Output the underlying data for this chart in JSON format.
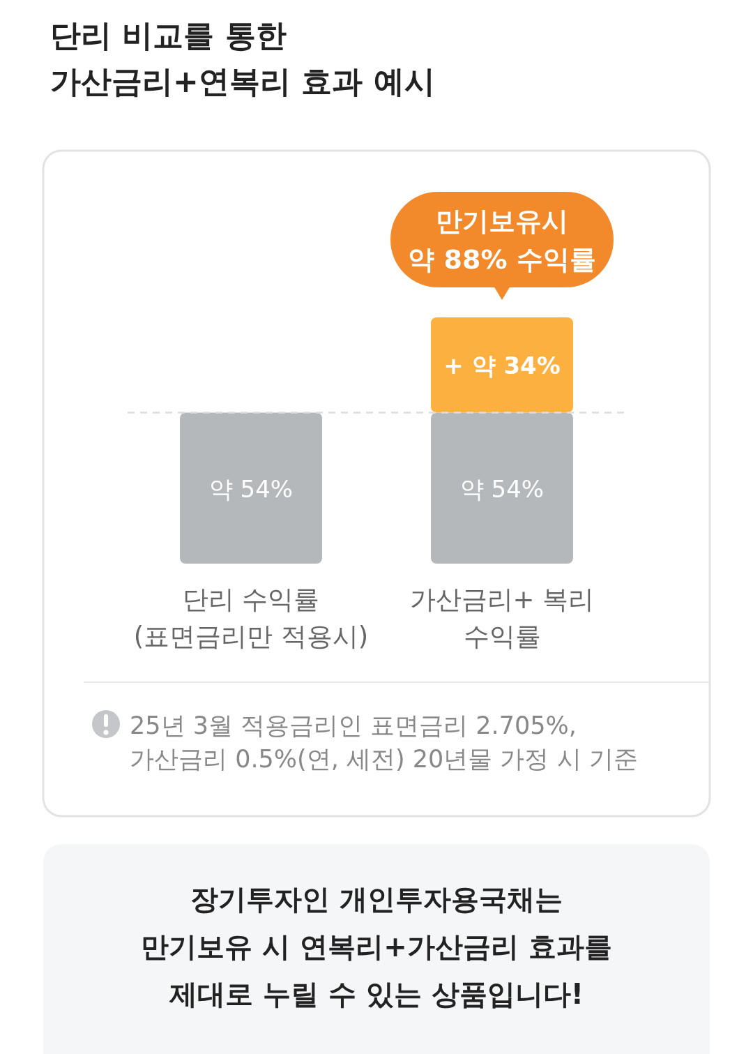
{
  "chart_data": {
    "type": "bar",
    "stacked": true,
    "title": "단리 비교를 통한\n가산금리+연복리 효과 예시",
    "categories": [
      "단리 수익률\n(표면금리만 적용시)",
      "가산금리+ 복리\n수익률"
    ],
    "series": [
      {
        "color": "#b5b8bb",
        "values": [
          54,
          54
        ],
        "value_labels": [
          "약 54%",
          "약 54%"
        ]
      },
      {
        "color": "#fbb040",
        "values": [
          null,
          34
        ],
        "value_labels": [
          null,
          "+ 약 34%"
        ]
      }
    ],
    "ref_lines": [
      {
        "axis": "y",
        "value": 54,
        "line_style": "dashed",
        "color": "#dddddd"
      }
    ],
    "annotations": [
      {
        "text": "만기보유시\n약 88% 수익률",
        "x": "가산금리+ 복리\n수익률",
        "y": 88
      },
      "25년 3월 적용금리인 표면금리 2.705%,\n가산금리 0.5%(연, 세전) 20년물 가정 시 기준",
      "장기투자인 개인투자용국채는\n만기보유 시 연복리+가산금리 효과를\n제대로 누릴 수 있는 상품입니다!"
    ]
  }
}
